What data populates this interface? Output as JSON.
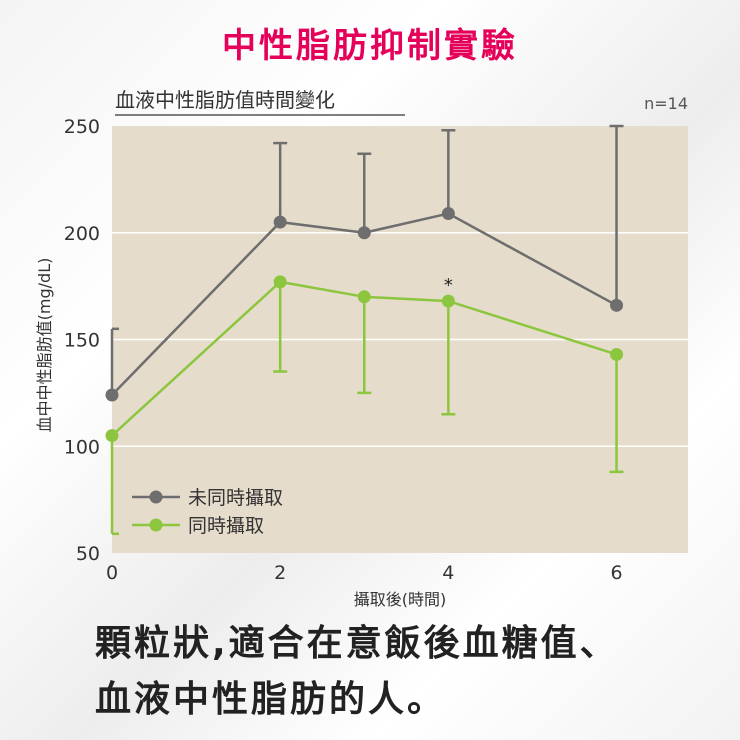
{
  "heading": "中性脂肪抑制實驗",
  "caption": {
    "line1": "顆粒狀,適合在意飯後血糖值、",
    "line2": "血液中性脂肪的人。"
  },
  "colors": {
    "heading": "#e5005a",
    "plot_background": "#e5dccb",
    "series_gray": "#6e6e6e",
    "series_green": "#8cc63f"
  },
  "chart_data": {
    "type": "line",
    "title": "血液中性脂肪值時間變化",
    "n_label": "n=14",
    "xlabel": "攝取後(時間)",
    "ylabel": "血中中性脂肪值(mg/dL)",
    "xlim": [
      0,
      6.85
    ],
    "ylim": [
      50,
      250
    ],
    "xticks": [
      0,
      2,
      4,
      6
    ],
    "yticks": [
      50,
      100,
      150,
      200,
      250
    ],
    "grid": true,
    "legend_position": "lower-left",
    "significance": [
      {
        "x": 4,
        "label": "*"
      }
    ],
    "series": [
      {
        "name": "未同時攝取",
        "color": "#6e6e6e",
        "x": [
          0,
          2,
          3,
          4,
          6
        ],
        "y": [
          124,
          205,
          200,
          209,
          166
        ],
        "error_upper": [
          155,
          242,
          237,
          248,
          250
        ],
        "error_lower": [
          null,
          null,
          null,
          null,
          null
        ]
      },
      {
        "name": "同時攝取",
        "color": "#8cc63f",
        "x": [
          0,
          2,
          3,
          4,
          6
        ],
        "y": [
          105,
          177,
          170,
          168,
          143
        ],
        "error_upper": [
          null,
          null,
          null,
          null,
          null
        ],
        "error_lower": [
          59,
          135,
          125,
          115,
          88
        ]
      }
    ]
  }
}
